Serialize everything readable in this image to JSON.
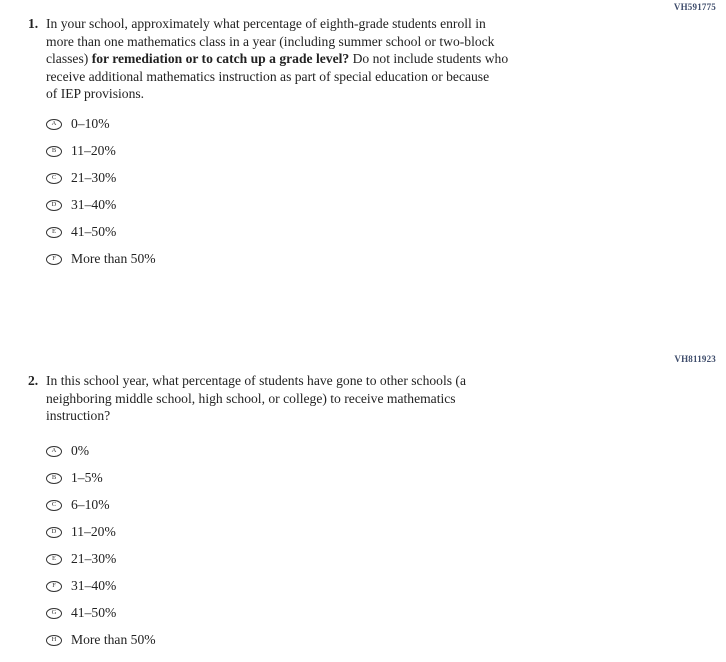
{
  "page": {
    "background": "#ffffff",
    "text_color": "#222222",
    "code_color": "#3e4c6b",
    "bubble_border_color": "#333333"
  },
  "questions": [
    {
      "code": "VH591775",
      "number": "1.",
      "lines": [
        [
          {
            "t": "In your school, approximately what percentage of eighth-grade students enroll in"
          }
        ],
        [
          {
            "t": "more than one mathematics class in a year (including summer school or two-block"
          }
        ],
        [
          {
            "t": "classes) "
          },
          {
            "t": "for remediation or to catch up a grade level?",
            "b": true
          },
          {
            "t": " Do not include students who"
          }
        ],
        [
          {
            "t": "receive additional mathematics instruction as part of special education or because"
          }
        ],
        [
          {
            "t": "of IEP provisions."
          }
        ]
      ],
      "options": [
        {
          "letter": "A",
          "label": "0–10%"
        },
        {
          "letter": "B",
          "label": "11–20%"
        },
        {
          "letter": "C",
          "label": "21–30%"
        },
        {
          "letter": "D",
          "label": "31–40%"
        },
        {
          "letter": "E",
          "label": "41–50%"
        },
        {
          "letter": "F",
          "label": "More than 50%"
        }
      ]
    },
    {
      "code": "VH811923",
      "number": "2.",
      "lines": [
        [
          {
            "t": "In this school year, what percentage of students have gone to other schools (a"
          }
        ],
        [
          {
            "t": "neighboring middle school, high school, or college) to receive mathematics"
          }
        ],
        [
          {
            "t": "instruction?"
          }
        ]
      ],
      "options": [
        {
          "letter": "A",
          "label": "0%"
        },
        {
          "letter": "B",
          "label": "1–5%"
        },
        {
          "letter": "C",
          "label": "6–10%"
        },
        {
          "letter": "D",
          "label": "11–20%"
        },
        {
          "letter": "E",
          "label": "21–30%"
        },
        {
          "letter": "F",
          "label": "31–40%"
        },
        {
          "letter": "G",
          "label": "41–50%"
        },
        {
          "letter": "H",
          "label": "More than 50%"
        }
      ]
    }
  ]
}
